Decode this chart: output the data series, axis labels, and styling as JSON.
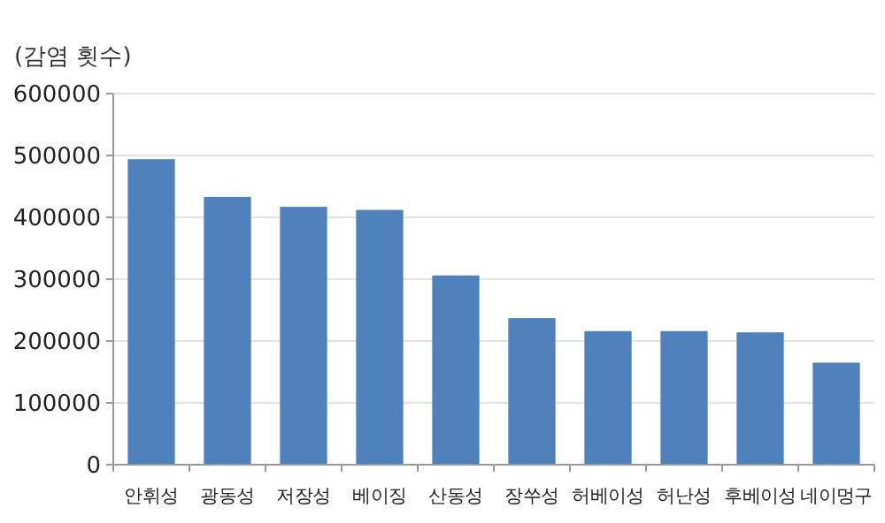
{
  "chart_data": {
    "type": "bar",
    "ylabel": "(감염 횟수)",
    "categories": [
      "안휘성",
      "광동성",
      "저장성",
      "베이징",
      "산동성",
      "장쑤성",
      "허베이성",
      "허난성",
      "후베이성",
      "네이멍구"
    ],
    "values": [
      494000,
      433000,
      417000,
      412000,
      306000,
      237000,
      216000,
      216000,
      214000,
      165000
    ],
    "color": "#4f81bd",
    "ylim": [
      0,
      600000
    ],
    "yticks": [
      0,
      100000,
      200000,
      300000,
      400000,
      500000,
      600000
    ],
    "grid": "y"
  }
}
